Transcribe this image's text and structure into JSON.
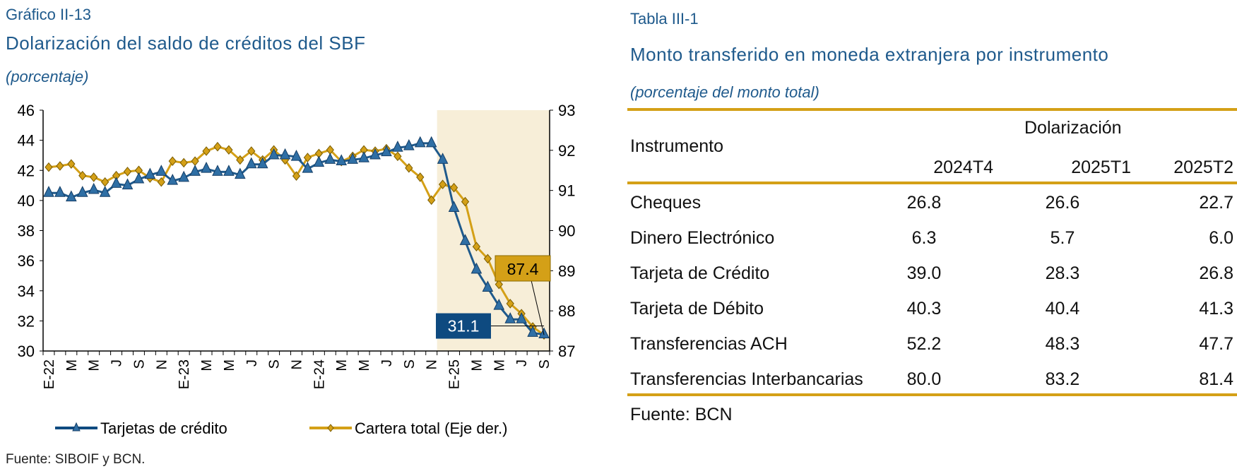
{
  "left": {
    "caption": "Gráfico II-13",
    "title": "Dolarización del saldo de créditos del SBF",
    "subtitle": "(porcentaje)",
    "source": "Fuente: SIBOIF y BCN."
  },
  "right": {
    "caption": "Tabla III-1",
    "title": "Monto transferido en moneda extranjera por instrumento",
    "subtitle": "(porcentaje del monto total)",
    "group_header": "Dolarización",
    "row_header": "Instrumento",
    "columns": [
      "2024T4",
      "2025T1",
      "2025T2"
    ],
    "rows": [
      {
        "label": "Cheques",
        "values": [
          "26.8",
          "26.6",
          "22.7"
        ]
      },
      {
        "label": "Dinero Electrónico",
        "values": [
          "6.3",
          "5.7",
          "6.0"
        ]
      },
      {
        "label": "Tarjeta de Crédito",
        "values": [
          "39.0",
          "28.3",
          "26.8"
        ]
      },
      {
        "label": "Tarjeta de Débito",
        "values": [
          "40.3",
          "40.4",
          "41.3"
        ]
      },
      {
        "label": "Transferencias ACH",
        "values": [
          "52.2",
          "48.3",
          "47.7"
        ]
      },
      {
        "label": "Transferencias Interbancarias",
        "values": [
          "80.0",
          "83.2",
          "81.4"
        ]
      }
    ],
    "source": "Fuente: BCN",
    "accent": "#d4a017"
  },
  "chart_data": {
    "type": "line",
    "title": "Dolarización del saldo de créditos del SBF",
    "ylabel": "porcentaje",
    "x_tick_labels": [
      "E-22",
      "M",
      "M",
      "J",
      "S",
      "N",
      "E-23",
      "M",
      "M",
      "J",
      "S",
      "N",
      "E-24",
      "M",
      "M",
      "J",
      "S",
      "N",
      "E-25",
      "M",
      "M",
      "J",
      "S"
    ],
    "x_tick_step": 2,
    "ylim_left": [
      30,
      46
    ],
    "yticks_left": [
      "30",
      "32",
      "34",
      "36",
      "38",
      "40",
      "42",
      "44",
      "46"
    ],
    "ylim_right": [
      87,
      93
    ],
    "yticks_right": [
      "87",
      "88",
      "89",
      "90",
      "91",
      "92",
      "93"
    ],
    "shaded_from_index": 35,
    "series": [
      {
        "name": "Tarjetas de crédito",
        "axis": "left",
        "color": "#1f5a8c",
        "marker": "triangle",
        "values": [
          40.5,
          40.5,
          40.2,
          40.5,
          40.7,
          40.5,
          41.1,
          41.0,
          41.4,
          41.7,
          41.9,
          41.3,
          41.5,
          41.9,
          42.1,
          41.9,
          41.9,
          41.7,
          42.4,
          42.4,
          43.0,
          43.0,
          42.9,
          42.1,
          42.5,
          42.7,
          42.6,
          42.7,
          42.8,
          43.0,
          43.2,
          43.5,
          43.6,
          43.8,
          43.8,
          42.7,
          39.5,
          37.3,
          35.4,
          34.2,
          33.0,
          32.1,
          32.1,
          31.2,
          31.1
        ],
        "end_label": "31.1"
      },
      {
        "name": "Cartera total (Eje der.)",
        "axis": "right",
        "color": "#d4a017",
        "marker": "diamond",
        "values": [
          91.58,
          91.61,
          91.66,
          91.37,
          91.33,
          91.21,
          91.37,
          91.47,
          91.5,
          91.31,
          91.21,
          91.73,
          91.69,
          91.73,
          91.98,
          92.09,
          92.01,
          91.76,
          91.98,
          91.76,
          92.01,
          91.76,
          91.36,
          91.82,
          91.92,
          92.01,
          91.72,
          91.85,
          92.01,
          91.98,
          92.04,
          91.85,
          91.56,
          91.33,
          90.76,
          91.15,
          91.07,
          90.72,
          89.6,
          89.3,
          88.66,
          88.18,
          87.93,
          87.6,
          87.4
        ],
        "end_label": "87.4"
      }
    ],
    "legend_position": "bottom"
  }
}
